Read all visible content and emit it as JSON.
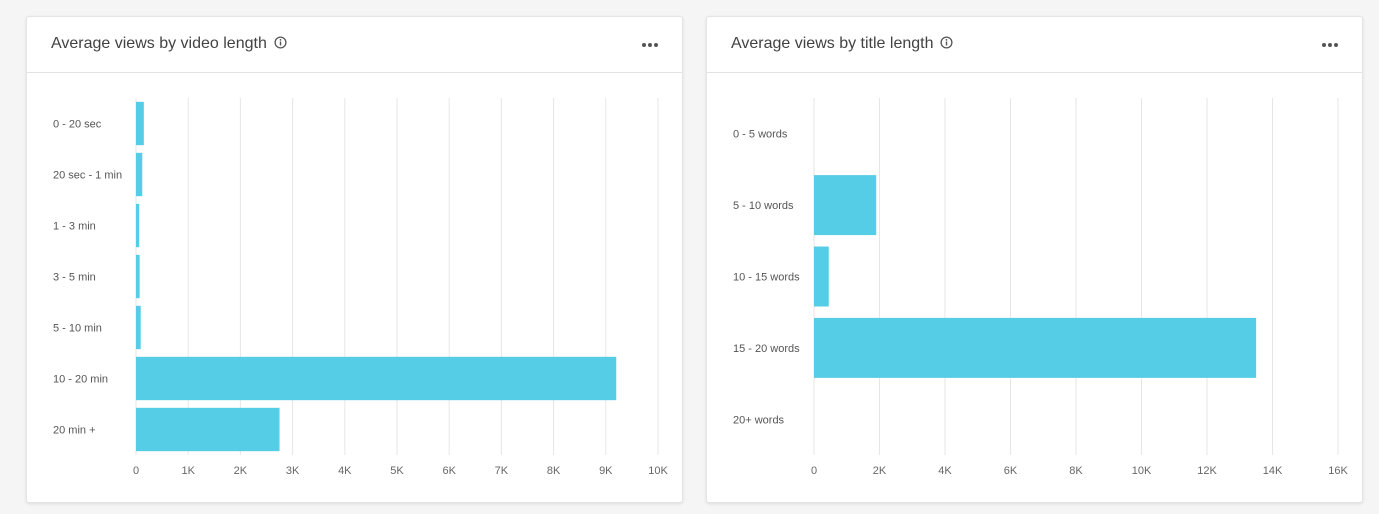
{
  "colors": {
    "bar": "#55cde6",
    "grid": "#e6e6e6",
    "axis_text": "#666666",
    "title_text": "#424242"
  },
  "cards": [
    {
      "title": "Average views by video length",
      "info_icon": "info-icon",
      "menu_icon": "more-horizontal-icon"
    },
    {
      "title": "Average views by title length",
      "info_icon": "info-icon",
      "menu_icon": "more-horizontal-icon"
    }
  ],
  "chart_data": [
    {
      "type": "bar",
      "orientation": "horizontal",
      "title": "Average views by video length",
      "categories": [
        "0 - 20 sec",
        "20 sec - 1 min",
        "1 - 3 min",
        "3 - 5 min",
        "5 - 10 min",
        "10 - 20 min",
        "20 min +"
      ],
      "values": [
        150,
        120,
        60,
        70,
        90,
        9200,
        2750
      ],
      "xlim": [
        0,
        10000
      ],
      "xticks": [
        0,
        1000,
        2000,
        3000,
        4000,
        5000,
        6000,
        7000,
        8000,
        9000,
        10000
      ],
      "xtick_labels": [
        "0",
        "1K",
        "2K",
        "3K",
        "4K",
        "5K",
        "6K",
        "7K",
        "8K",
        "9K",
        "10K"
      ],
      "xlabel": "",
      "ylabel": "",
      "grid": true,
      "legend": "none"
    },
    {
      "type": "bar",
      "orientation": "horizontal",
      "title": "Average views by title length",
      "categories": [
        "0 - 5 words",
        "5 - 10 words",
        "10 - 15 words",
        "15 - 20 words",
        "20+ words"
      ],
      "values": [
        0,
        1900,
        450,
        13500,
        0
      ],
      "xlim": [
        0,
        16000
      ],
      "xticks": [
        0,
        2000,
        4000,
        6000,
        8000,
        10000,
        12000,
        14000,
        16000
      ],
      "xtick_labels": [
        "0",
        "2K",
        "4K",
        "6K",
        "8K",
        "10K",
        "12K",
        "14K",
        "16K"
      ],
      "xlabel": "",
      "ylabel": "",
      "grid": true,
      "legend": "none"
    }
  ]
}
